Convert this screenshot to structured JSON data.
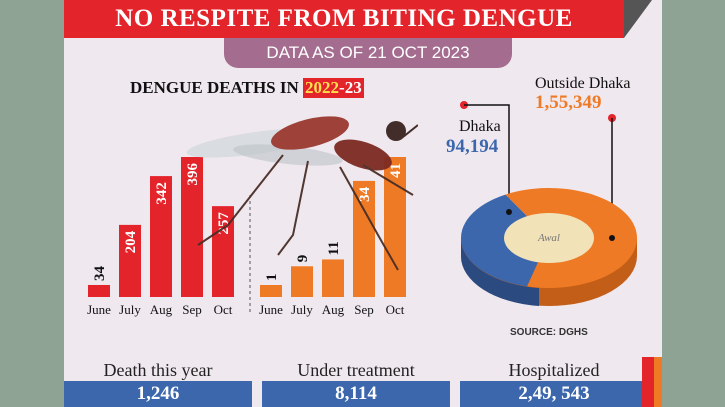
{
  "header": {
    "title": "NO RESPITE FROM BITING DENGUE",
    "date_label": "DATA AS OF 21 OCT 2023"
  },
  "chart_data": [
    {
      "type": "bar",
      "title": "DENGUE DEATHS IN",
      "title_year": "2022",
      "title_year_suffix": "-23",
      "groups": [
        {
          "name": "2022",
          "color": "#e3242b",
          "categories": [
            "June",
            "July",
            "Aug",
            "Sep",
            "Oct"
          ],
          "values": [
            34,
            204,
            342,
            396,
            257
          ]
        },
        {
          "name": "2023",
          "color": "#ef7a25",
          "categories": [
            "June",
            "July",
            "Aug",
            "Sep",
            "Oct"
          ],
          "values": [
            1,
            9,
            11,
            34,
            41
          ]
        }
      ]
    },
    {
      "type": "pie",
      "slices": [
        {
          "label": "Dhaka",
          "value": 94194,
          "value_text": "94,194",
          "color": "#3c67ad"
        },
        {
          "label": "Outside Dhaka",
          "value": 155349,
          "value_text": "1,55,349",
          "color": "#ef7a25"
        }
      ],
      "source": "SOURCE: DGHS"
    }
  ],
  "stats": [
    {
      "label": "Death this year",
      "value": "1,246"
    },
    {
      "label": "Under treatment",
      "value": "8,114"
    },
    {
      "label": "Hospitalized",
      "value": "2,49, 543"
    }
  ],
  "colors": {
    "red": "#e3242b",
    "orange": "#ef7a25",
    "blue": "#3c67ad",
    "purple": "#a46d90"
  }
}
